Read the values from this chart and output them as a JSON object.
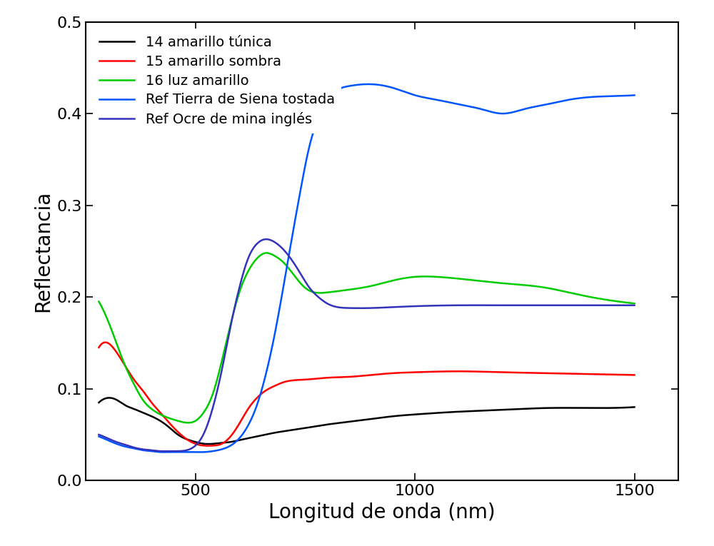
{
  "title": "",
  "xlabel": "Longitud de onda (nm)",
  "ylabel": "Reflectancia",
  "xlim": [
    250,
    1600
  ],
  "ylim": [
    0.0,
    0.5
  ],
  "xticks": [
    500,
    1000,
    1500
  ],
  "yticks": [
    0.0,
    0.1,
    0.2,
    0.3,
    0.4,
    0.5
  ],
  "background_color": "#ffffff",
  "legend_entries": [
    {
      "label": "14 amarillo túnica",
      "color": "#000000"
    },
    {
      "label": "15 amarillo sombra",
      "color": "#ff0000"
    },
    {
      "label": "16 luz amarillo",
      "color": "#00cc00"
    },
    {
      "label": "Ref Tierra de Siena tostada",
      "color": "#0055ff"
    },
    {
      "label": "Ref Ocre de mina inglés",
      "color": "#3333bb"
    }
  ],
  "curves": {
    "black": {
      "color": "#000000",
      "x": [
        280,
        300,
        320,
        340,
        360,
        380,
        400,
        420,
        440,
        460,
        480,
        500,
        520,
        540,
        560,
        580,
        600,
        640,
        680,
        720,
        760,
        800,
        850,
        900,
        950,
        1000,
        1100,
        1200,
        1300,
        1400,
        1500
      ],
      "y": [
        0.085,
        0.09,
        0.088,
        0.082,
        0.078,
        0.074,
        0.07,
        0.065,
        0.058,
        0.05,
        0.045,
        0.042,
        0.04,
        0.04,
        0.041,
        0.042,
        0.044,
        0.048,
        0.052,
        0.055,
        0.058,
        0.061,
        0.064,
        0.067,
        0.07,
        0.072,
        0.075,
        0.077,
        0.079,
        0.079,
        0.08
      ]
    },
    "red": {
      "color": "#ff0000",
      "x": [
        280,
        300,
        320,
        340,
        360,
        380,
        400,
        420,
        440,
        460,
        480,
        500,
        520,
        540,
        560,
        580,
        600,
        620,
        640,
        660,
        680,
        700,
        750,
        800,
        850,
        900,
        950,
        1000,
        1100,
        1200,
        1300,
        1400,
        1500
      ],
      "y": [
        0.145,
        0.15,
        0.14,
        0.125,
        0.11,
        0.098,
        0.085,
        0.074,
        0.063,
        0.053,
        0.045,
        0.04,
        0.038,
        0.038,
        0.04,
        0.048,
        0.062,
        0.078,
        0.09,
        0.098,
        0.103,
        0.107,
        0.11,
        0.112,
        0.113,
        0.115,
        0.117,
        0.118,
        0.119,
        0.118,
        0.117,
        0.116,
        0.115
      ]
    },
    "green": {
      "color": "#00cc00",
      "x": [
        280,
        300,
        320,
        340,
        360,
        380,
        400,
        420,
        440,
        460,
        480,
        500,
        520,
        540,
        560,
        580,
        600,
        620,
        640,
        660,
        680,
        700,
        750,
        800,
        850,
        900,
        950,
        1000,
        1050,
        1100,
        1200,
        1300,
        1350,
        1400,
        1450,
        1500
      ],
      "y": [
        0.195,
        0.175,
        0.15,
        0.125,
        0.105,
        0.088,
        0.078,
        0.072,
        0.068,
        0.065,
        0.063,
        0.065,
        0.075,
        0.095,
        0.13,
        0.17,
        0.205,
        0.228,
        0.242,
        0.248,
        0.245,
        0.238,
        0.21,
        0.205,
        0.208,
        0.212,
        0.218,
        0.222,
        0.222,
        0.22,
        0.215,
        0.21,
        0.205,
        0.2,
        0.196,
        0.193
      ]
    },
    "blue_dark": {
      "color": "#0055ff",
      "x": [
        280,
        300,
        320,
        340,
        360,
        380,
        400,
        420,
        440,
        460,
        480,
        500,
        520,
        540,
        560,
        580,
        600,
        620,
        640,
        660,
        680,
        700,
        720,
        740,
        760,
        780,
        800,
        820,
        850,
        900,
        950,
        1000,
        1050,
        1100,
        1150,
        1200,
        1250,
        1300,
        1350,
        1400,
        1450,
        1500
      ],
      "y": [
        0.048,
        0.044,
        0.04,
        0.037,
        0.035,
        0.033,
        0.032,
        0.031,
        0.031,
        0.031,
        0.031,
        0.031,
        0.031,
        0.032,
        0.034,
        0.038,
        0.046,
        0.06,
        0.082,
        0.115,
        0.158,
        0.21,
        0.265,
        0.318,
        0.365,
        0.395,
        0.415,
        0.425,
        0.43,
        0.432,
        0.428,
        0.42,
        0.415,
        0.41,
        0.405,
        0.4,
        0.405,
        0.41,
        0.415,
        0.418,
        0.419,
        0.42
      ]
    },
    "blue_light": {
      "color": "#3333bb",
      "x": [
        280,
        300,
        320,
        340,
        360,
        380,
        400,
        420,
        440,
        460,
        480,
        500,
        520,
        540,
        560,
        580,
        600,
        620,
        640,
        660,
        680,
        700,
        720,
        740,
        760,
        780,
        800,
        850,
        900,
        950,
        1000,
        1100,
        1200,
        1300,
        1400,
        1500
      ],
      "y": [
        0.05,
        0.046,
        0.042,
        0.039,
        0.036,
        0.034,
        0.033,
        0.032,
        0.032,
        0.032,
        0.033,
        0.038,
        0.052,
        0.08,
        0.12,
        0.168,
        0.21,
        0.242,
        0.258,
        0.263,
        0.26,
        0.252,
        0.24,
        0.225,
        0.21,
        0.2,
        0.193,
        0.188,
        0.188,
        0.189,
        0.19,
        0.191,
        0.191,
        0.191,
        0.191,
        0.191
      ]
    }
  },
  "figsize": [
    10.0,
    7.65
  ],
  "dpi": 100,
  "fontsize_label": 20,
  "fontsize_tick": 16,
  "fontsize_legend": 14,
  "linewidth": 1.8
}
